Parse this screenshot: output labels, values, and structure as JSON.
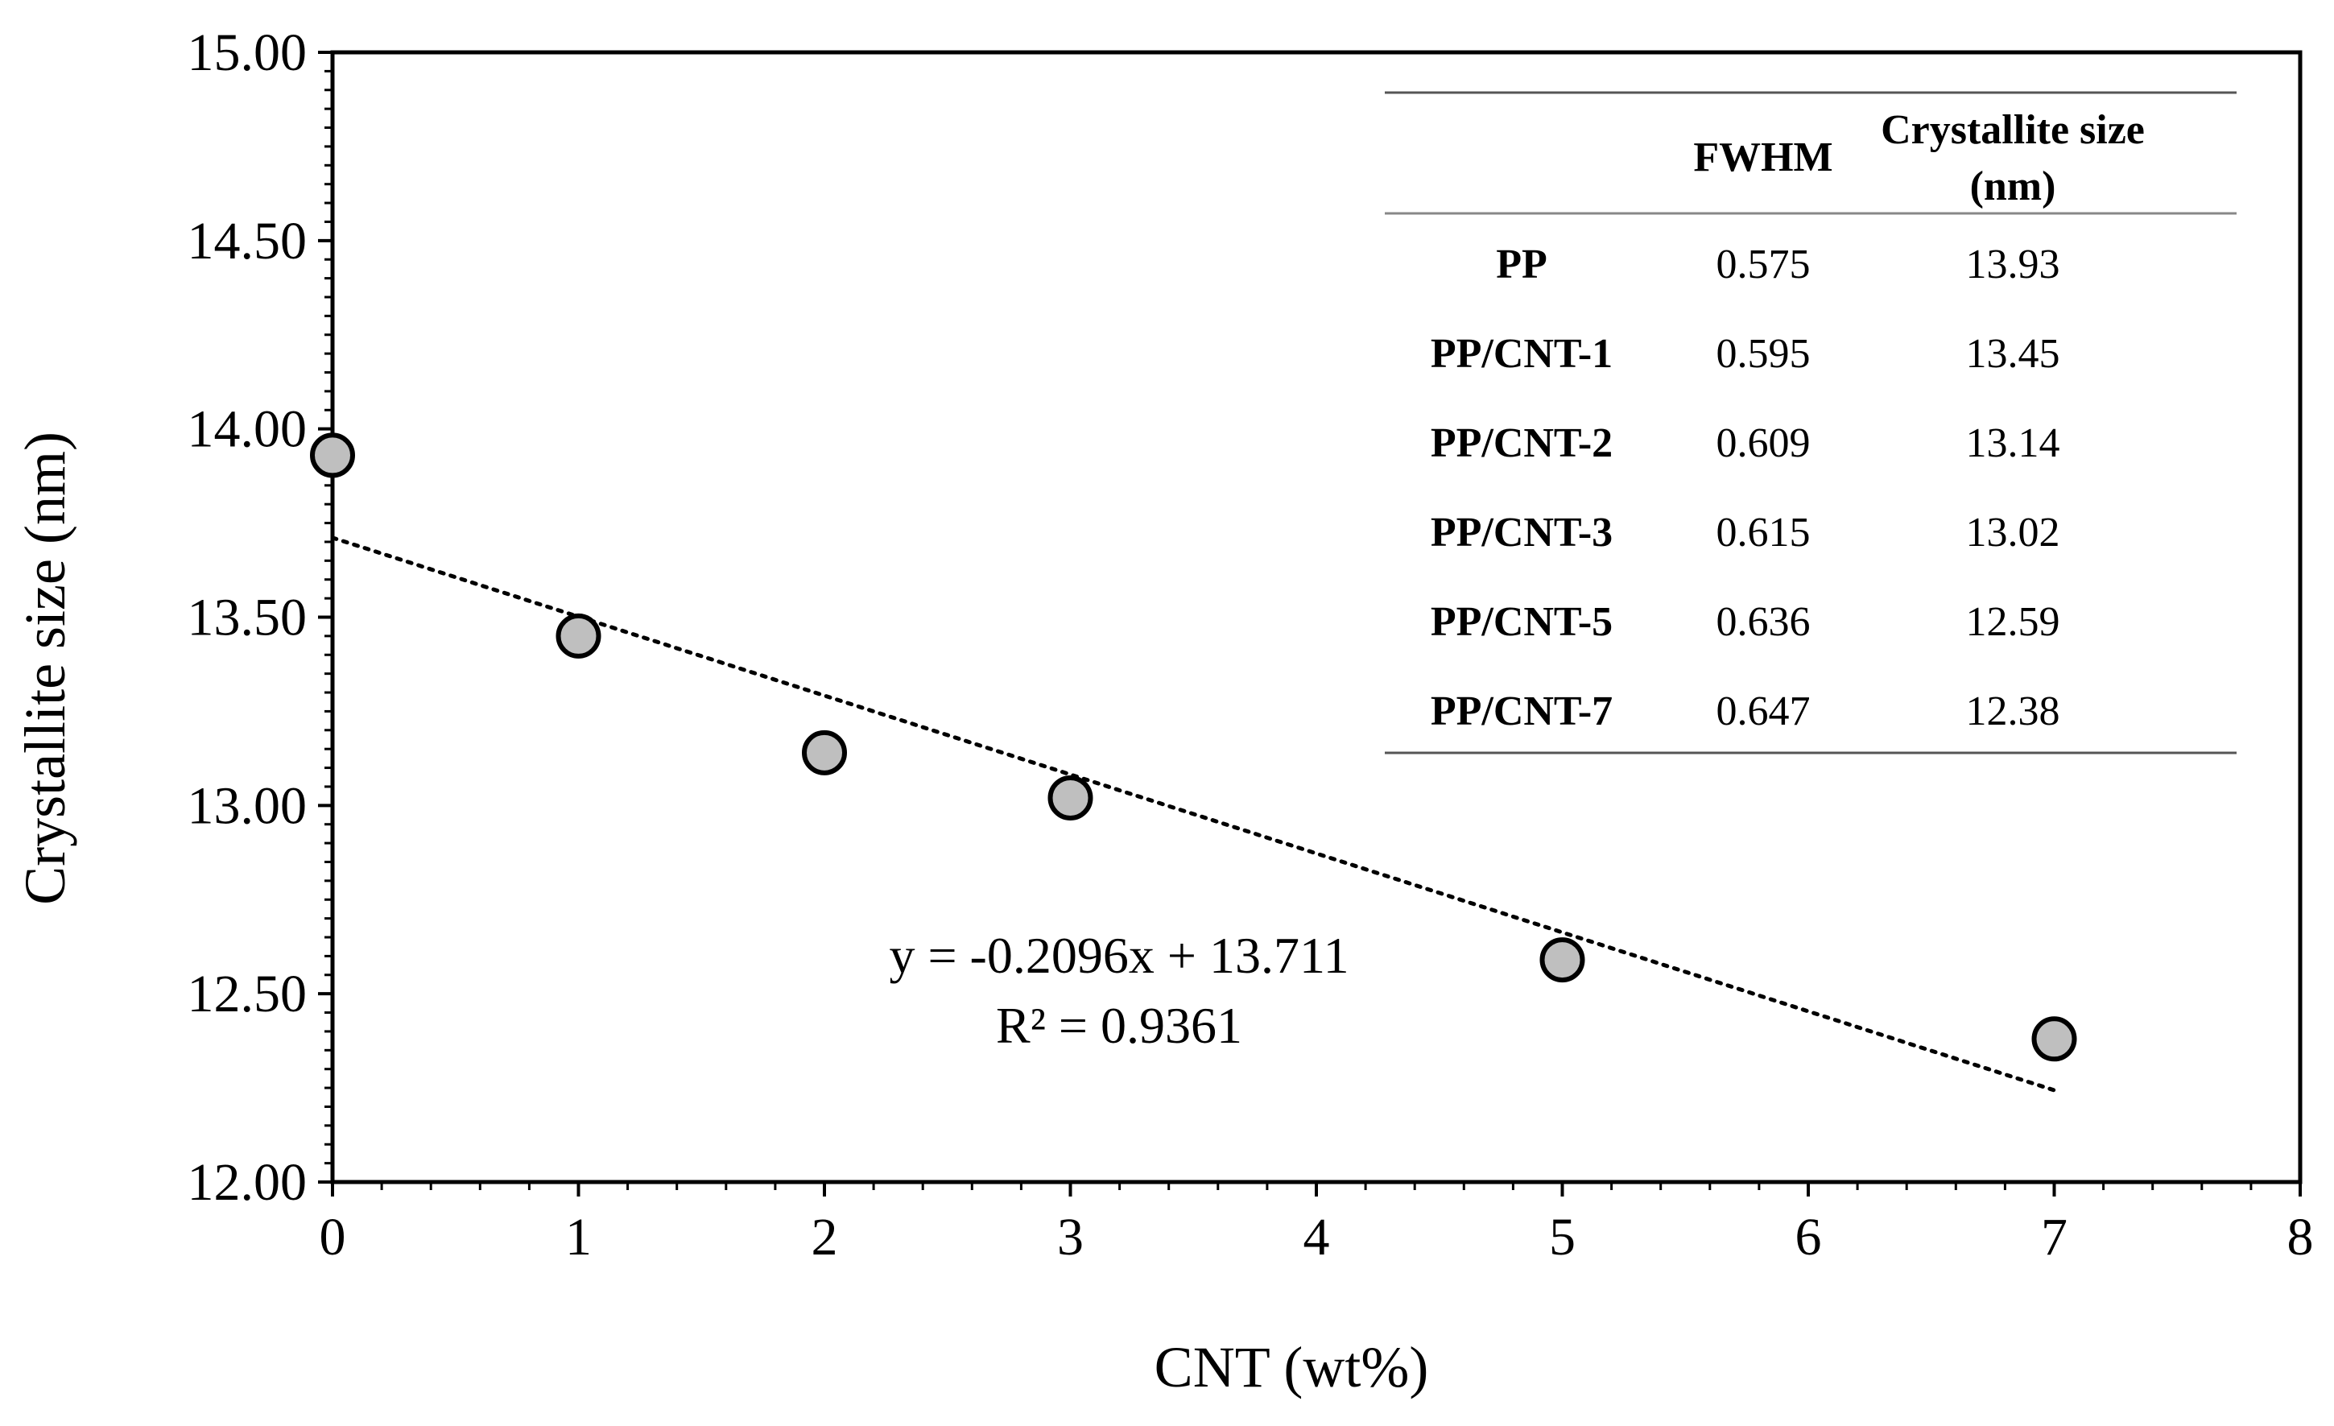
{
  "chart_data": {
    "type": "scatter",
    "title": "",
    "xlabel": "CNT (wt%)",
    "ylabel": "Crystallite size (nm)",
    "xlim": [
      0,
      8
    ],
    "ylim": [
      12.0,
      15.0
    ],
    "x_ticks": [
      0,
      1,
      2,
      3,
      4,
      5,
      6,
      7,
      8
    ],
    "y_ticks": [
      12.0,
      12.5,
      13.0,
      13.5,
      14.0,
      14.5,
      15.0
    ],
    "x_tick_labels": [
      "0",
      "1",
      "2",
      "3",
      "4",
      "5",
      "6",
      "7",
      "8"
    ],
    "y_tick_labels": [
      "12.00",
      "12.50",
      "13.00",
      "13.50",
      "14.00",
      "14.50",
      "15.00"
    ],
    "grid": false,
    "series": [
      {
        "name": "Crystallite size",
        "marker_color": "#bfbfbf",
        "x": [
          0,
          1,
          2,
          3,
          5,
          7
        ],
        "y": [
          13.93,
          13.45,
          13.14,
          13.02,
          12.59,
          12.38
        ]
      }
    ],
    "trendline": {
      "type": "linear",
      "slope": -0.2096,
      "intercept": 13.711,
      "x_range": [
        0,
        7
      ],
      "equation_label": "y = -0.2096x + 13.711",
      "r2_label": "R² = 0.9361"
    },
    "inset_table": {
      "columns": [
        "",
        "FWHM",
        "Crystallite size",
        "(nm)"
      ],
      "header": {
        "col1": "FWHM",
        "col2_line1": "Crystallite size",
        "col2_line2": "(nm)"
      },
      "rows": [
        {
          "sample": "PP",
          "fwhm": "0.575",
          "size": "13.93"
        },
        {
          "sample": "PP/CNT-1",
          "fwhm": "0.595",
          "size": "13.45"
        },
        {
          "sample": "PP/CNT-2",
          "fwhm": "0.609",
          "size": "13.14"
        },
        {
          "sample": "PP/CNT-3",
          "fwhm": "0.615",
          "size": "13.02"
        },
        {
          "sample": "PP/CNT-5",
          "fwhm": "0.636",
          "size": "12.59"
        },
        {
          "sample": "PP/CNT-7",
          "fwhm": "0.647",
          "size": "12.38"
        }
      ]
    }
  }
}
